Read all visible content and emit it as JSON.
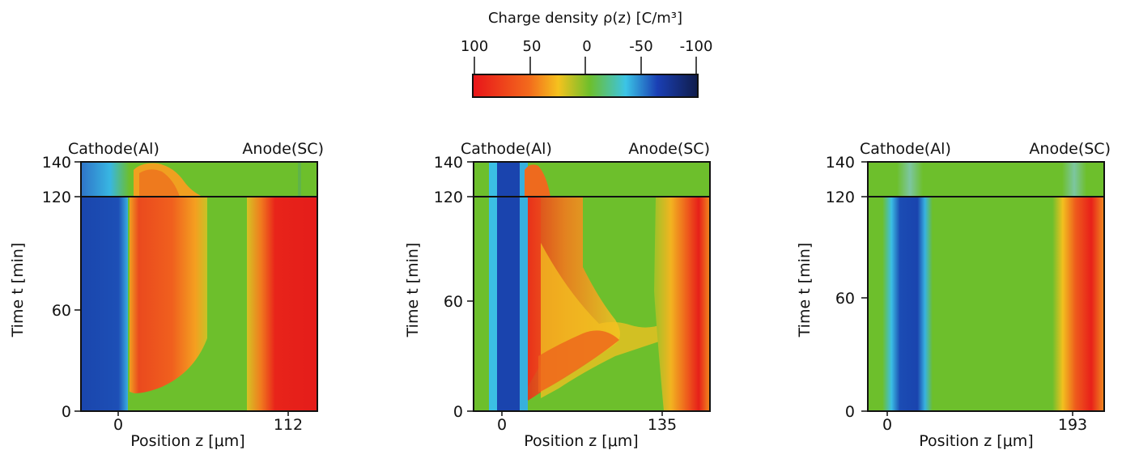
{
  "colorbar": {
    "title": "Charge density ρ(z) [C/m³]",
    "ticks": [
      "100",
      "50",
      "0",
      "-50",
      "-100"
    ],
    "colors": [
      "#e8141a",
      "#f36a1c",
      "#f5c21e",
      "#6dbf2c",
      "#3bc4e6",
      "#1a3fb4",
      "#101c4a"
    ]
  },
  "chart_data": [
    {
      "type": "heatmap",
      "ylabel": "Time t [min]",
      "xlabel": "Position z [μm]",
      "yticks": [
        "0",
        "60",
        "120",
        "140"
      ],
      "xticks": [
        "0",
        "112"
      ],
      "ylim": [
        0,
        140
      ],
      "electrode_left": "Cathode(Al)",
      "electrode_right": "Anode(SC)",
      "divider_time": 120
    },
    {
      "type": "heatmap",
      "ylabel": "Time t [min]",
      "xlabel": "Position z [μm]",
      "yticks": [
        "0",
        "60",
        "120",
        "140"
      ],
      "xticks": [
        "0",
        "135"
      ],
      "ylim": [
        0,
        140
      ],
      "electrode_left": "Cathode(Al)",
      "electrode_right": "Anode(SC)",
      "divider_time": 120
    },
    {
      "type": "heatmap",
      "ylabel": "Time t [min]",
      "xlabel": "Position z [μm]",
      "yticks": [
        "0",
        "60",
        "120",
        "140"
      ],
      "xticks": [
        "0",
        "193"
      ],
      "ylim": [
        0,
        140
      ],
      "electrode_left": "Cathode(Al)",
      "electrode_right": "Anode(SC)",
      "divider_time": 120
    }
  ]
}
